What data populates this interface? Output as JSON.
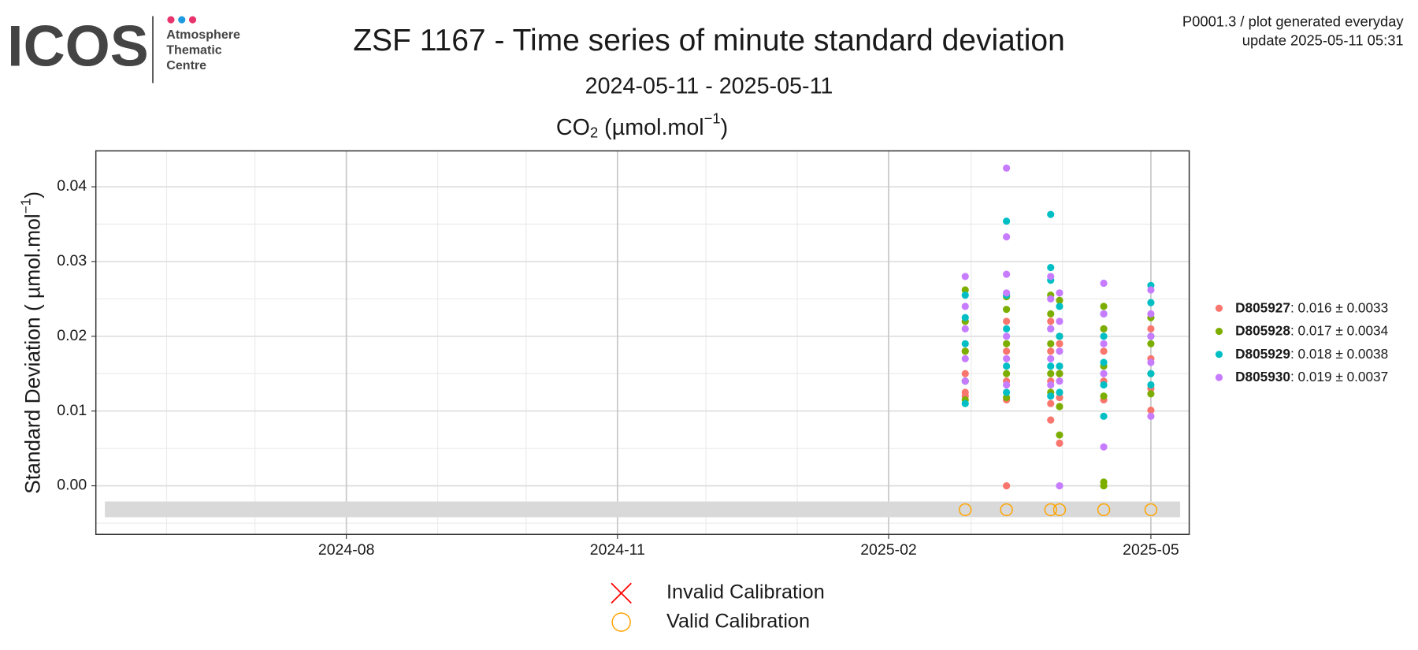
{
  "header": {
    "logo": "ICOS",
    "logo_sub": [
      "Atmosphere",
      "Thematic",
      "Centre"
    ],
    "info": [
      "P0001.3 / plot generated everyday",
      "update  2025-05-11 05:31"
    ]
  },
  "chart_data": {
    "type": "scatter",
    "title": "ZSF 1167 - Time series of minute standard deviation",
    "subtitle": "2024-05-11 - 2025-05-11",
    "panel_title": {
      "base": "CO",
      "sub": "2",
      "rest": " (µmol.mol",
      "sup": "−1",
      "end": ")"
    },
    "y_label": {
      "base": "Standard Deviation ( µmol.mol",
      "sup": "−1",
      "end": ")"
    },
    "xlim": [
      "2024-05-08",
      "2025-05-14"
    ],
    "xticks": [
      "2024-08",
      "2024-11",
      "2025-02",
      "2025-05"
    ],
    "xminor": [
      "2024-06",
      "2024-07",
      "2024-09",
      "2024-10",
      "2024-12",
      "2025-01",
      "2025-03",
      "2025-04"
    ],
    "ylim": [
      -0.0065,
      0.0448
    ],
    "yticks": [
      {
        "value": 0,
        "label": "0.00"
      },
      {
        "value": 0.01,
        "label": "0.01"
      },
      {
        "value": 0.02,
        "label": "0.02"
      },
      {
        "value": 0.03,
        "label": "0.03"
      },
      {
        "value": 0.04,
        "label": "0.04"
      }
    ],
    "yminor": [
      -0.005,
      0.005,
      0.015,
      0.025,
      0.035
    ],
    "grid": true,
    "legend_position": "right",
    "calibration_band": [
      -0.0042,
      -0.0021
    ],
    "series": [
      {
        "name": "D805927",
        "summary": ": 0.016 ± 0.0033",
        "color": "#f8766d",
        "x": [
          "2025-02-27",
          "2025-02-27",
          "2025-02-27",
          "2025-02-27",
          "2025-02-27",
          "2025-03-13",
          "2025-03-13",
          "2025-03-13",
          "2025-03-13",
          "2025-03-13",
          "2025-03-28",
          "2025-03-28",
          "2025-03-28",
          "2025-03-28",
          "2025-03-28",
          "2025-03-31",
          "2025-03-31",
          "2025-03-31",
          "2025-03-31",
          "2025-04-15",
          "2025-04-15",
          "2025-04-15",
          "2025-04-15",
          "2025-05-01",
          "2025-05-01",
          "2025-05-01",
          "2025-05-01"
        ],
        "values": [
          0.012,
          0.0125,
          0.015,
          0.018,
          0.022,
          0,
          0.0115,
          0.014,
          0.018,
          0.022,
          0.0088,
          0.011,
          0.014,
          0.018,
          0.022,
          0.0057,
          0.0118,
          0.015,
          0.019,
          0.0115,
          0.014,
          0.018,
          0.021,
          0.0101,
          0.013,
          0.017,
          0.021
        ]
      },
      {
        "name": "D805928",
        "summary": ": 0.017 ± 0.0034",
        "color": "#7cae00",
        "x": [
          "2025-02-27",
          "2025-02-27",
          "2025-02-27",
          "2025-02-27",
          "2025-02-27",
          "2025-03-13",
          "2025-03-13",
          "2025-03-13",
          "2025-03-13",
          "2025-03-13",
          "2025-03-28",
          "2025-03-28",
          "2025-03-28",
          "2025-03-28",
          "2025-03-28",
          "2025-03-31",
          "2025-03-31",
          "2025-03-31",
          "2025-03-31",
          "2025-03-31",
          "2025-04-15",
          "2025-04-15",
          "2025-04-15",
          "2025-04-15",
          "2025-04-15",
          "2025-04-15",
          "2025-05-01",
          "2025-05-01",
          "2025-05-01",
          "2025-05-01"
        ],
        "values": [
          0.0115,
          0.014,
          0.018,
          0.022,
          0.0262,
          0.0118,
          0.015,
          0.019,
          0.0236,
          0.0253,
          0.0125,
          0.015,
          0.019,
          0.023,
          0.0255,
          0.0068,
          0.0106,
          0.015,
          0.02,
          0.0248,
          0,
          0.0005,
          0.012,
          0.016,
          0.021,
          0.024,
          0.0123,
          0.015,
          0.019,
          0.0225
        ]
      },
      {
        "name": "D805929",
        "summary": ": 0.018 ± 0.0038",
        "color": "#00bfc4",
        "x": [
          "2025-02-27",
          "2025-02-27",
          "2025-02-27",
          "2025-02-27",
          "2025-02-27",
          "2025-03-13",
          "2025-03-13",
          "2025-03-13",
          "2025-03-13",
          "2025-03-13",
          "2025-03-28",
          "2025-03-28",
          "2025-03-28",
          "2025-03-28",
          "2025-03-28",
          "2025-03-28",
          "2025-03-31",
          "2025-03-31",
          "2025-03-31",
          "2025-03-31",
          "2025-04-15",
          "2025-04-15",
          "2025-04-15",
          "2025-04-15",
          "2025-04-15",
          "2025-05-01",
          "2025-05-01",
          "2025-05-01",
          "2025-05-01",
          "2025-05-01"
        ],
        "values": [
          0.011,
          0.014,
          0.019,
          0.0225,
          0.0255,
          0.0125,
          0.016,
          0.021,
          0.0255,
          0.0354,
          0.012,
          0.016,
          0.021,
          0.0275,
          0.0292,
          0.0363,
          0.0125,
          0.016,
          0.02,
          0.024,
          0.0093,
          0.0135,
          0.0165,
          0.02,
          0.023,
          0.0135,
          0.015,
          0.02,
          0.0245,
          0.0268
        ]
      },
      {
        "name": "D805930",
        "summary": ": 0.019 ± 0.0037",
        "color": "#c77cff",
        "x": [
          "2025-02-27",
          "2025-02-27",
          "2025-02-27",
          "2025-02-27",
          "2025-02-27",
          "2025-03-13",
          "2025-03-13",
          "2025-03-13",
          "2025-03-13",
          "2025-03-13",
          "2025-03-13",
          "2025-03-13",
          "2025-03-28",
          "2025-03-28",
          "2025-03-28",
          "2025-03-28",
          "2025-03-28",
          "2025-03-31",
          "2025-03-31",
          "2025-03-31",
          "2025-03-31",
          "2025-03-31",
          "2025-04-15",
          "2025-04-15",
          "2025-04-15",
          "2025-04-15",
          "2025-04-15",
          "2025-05-01",
          "2025-05-01",
          "2025-05-01",
          "2025-05-01",
          "2025-05-01"
        ],
        "values": [
          0.014,
          0.017,
          0.021,
          0.024,
          0.028,
          0.0135,
          0.017,
          0.02,
          0.0258,
          0.0283,
          0.0333,
          0.0425,
          0.0135,
          0.017,
          0.021,
          0.025,
          0.028,
          0,
          0.014,
          0.018,
          0.022,
          0.0258,
          0.0052,
          0.015,
          0.019,
          0.023,
          0.0271,
          0.0093,
          0.0165,
          0.02,
          0.023,
          0.0262
        ]
      }
    ],
    "calibrations": [
      {
        "name": "Invalid Calibration",
        "color": "#ff0000",
        "marker": "cross",
        "x": [],
        "values": []
      },
      {
        "name": "Valid Calibration",
        "color": "#ffa500",
        "marker": "circle",
        "x": [
          "2025-02-27",
          "2025-03-13",
          "2025-03-28",
          "2025-03-31",
          "2025-04-15",
          "2025-05-01"
        ],
        "values": [
          -0.0032,
          -0.0032,
          -0.0032,
          -0.0032,
          -0.0032,
          -0.0032
        ]
      }
    ]
  }
}
